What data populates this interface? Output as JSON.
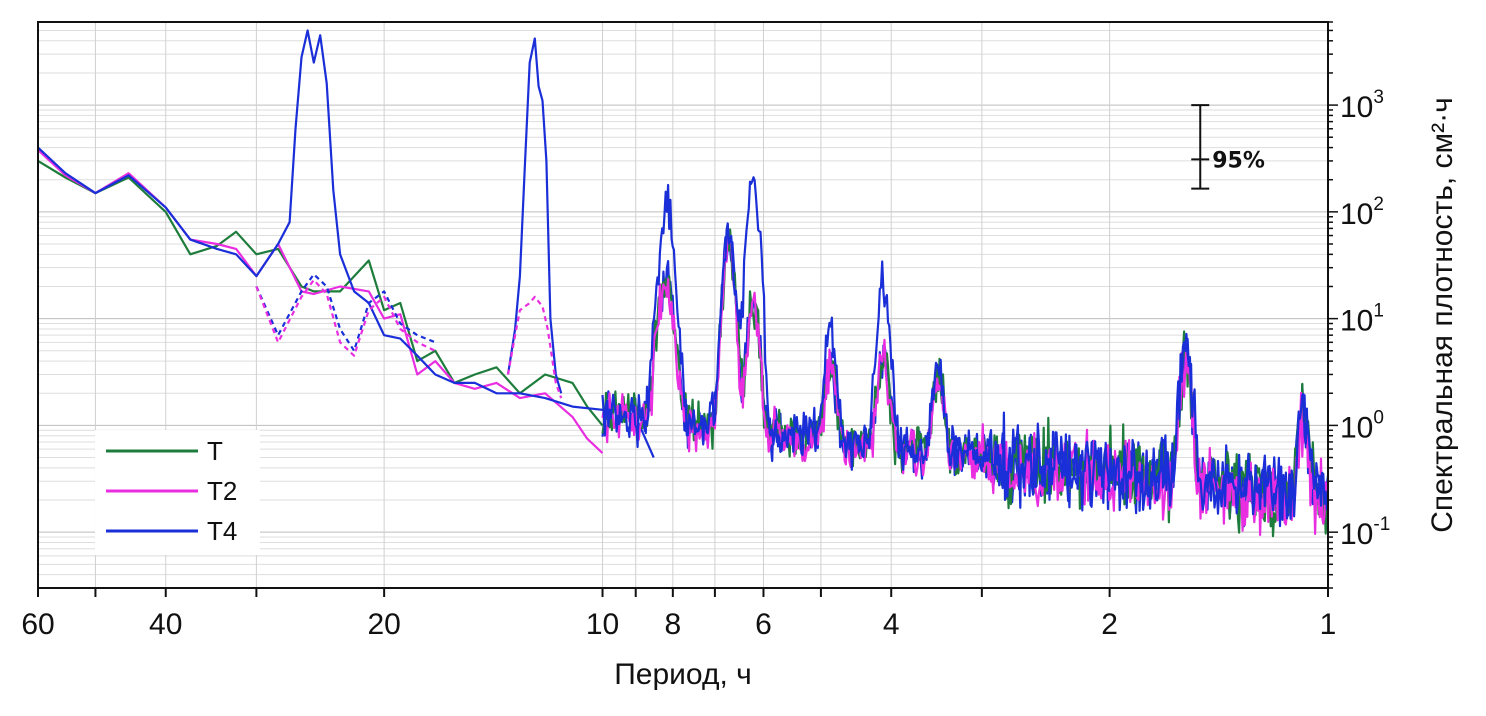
{
  "chart_data": {
    "type": "line",
    "xlabel": "Период, ч",
    "ylabel": "Спектральная плотность, см²·ч",
    "x_scale": "log-frequency (axis labelled by period)",
    "xlim": [
      60,
      1
    ],
    "ylim": [
      0.03,
      6000
    ],
    "y_scale": "log",
    "x_ticks": [
      60,
      40,
      20,
      10,
      8,
      6,
      4,
      2,
      1
    ],
    "x_minor_ticks": [
      50,
      30,
      9,
      7,
      5,
      3
    ],
    "y_tick_labels": [
      {
        "value": 1000,
        "base": "10",
        "exp": "3"
      },
      {
        "value": 100,
        "base": "10",
        "exp": "2"
      },
      {
        "value": 10,
        "base": "10",
        "exp": "1"
      },
      {
        "value": 1,
        "base": "10",
        "exp": "0"
      },
      {
        "value": 0.1,
        "base": "10",
        "exp": "-1"
      }
    ],
    "grid": true,
    "legend_position": "bottom-left",
    "confidence_interval": {
      "label": "95%",
      "upper": 1000,
      "center": 310,
      "lower": 165,
      "period": 1.5
    },
    "series": [
      {
        "name": "T",
        "color": "#1e7d3c",
        "style": "solid",
        "points": [
          [
            60,
            300
          ],
          [
            55,
            210
          ],
          [
            50,
            150
          ],
          [
            45,
            210
          ],
          [
            40,
            100
          ],
          [
            37,
            40
          ],
          [
            34,
            48
          ],
          [
            32,
            65
          ],
          [
            30,
            40
          ],
          [
            28,
            45
          ],
          [
            26,
            20
          ],
          [
            25,
            18
          ],
          [
            23,
            18
          ],
          [
            21,
            35
          ],
          [
            20,
            12
          ],
          [
            19,
            14
          ],
          [
            18,
            4
          ],
          [
            17,
            5
          ],
          [
            16,
            2.5
          ],
          [
            15,
            3
          ],
          [
            14,
            3.5
          ],
          [
            13,
            2
          ],
          [
            12,
            3
          ],
          [
            11,
            2.5
          ],
          [
            10.5,
            1.5
          ],
          [
            10,
            1
          ]
        ]
      },
      {
        "name": "T2",
        "color": "#e82ee0",
        "style": "solid",
        "points": [
          [
            60,
            380
          ],
          [
            55,
            220
          ],
          [
            50,
            150
          ],
          [
            45,
            230
          ],
          [
            40,
            110
          ],
          [
            37,
            55
          ],
          [
            34,
            50
          ],
          [
            32,
            45
          ],
          [
            30,
            25
          ],
          [
            28,
            50
          ],
          [
            26,
            18
          ],
          [
            25,
            17
          ],
          [
            23,
            20
          ],
          [
            21,
            18
          ],
          [
            20,
            10
          ],
          [
            19,
            11
          ],
          [
            18,
            3
          ],
          [
            17,
            4
          ],
          [
            16,
            2.5
          ],
          [
            15,
            2.2
          ],
          [
            14,
            2.5
          ],
          [
            13,
            1.8
          ],
          [
            12,
            2
          ],
          [
            11,
            1.2
          ],
          [
            10.5,
            0.75
          ],
          [
            10,
            0.55
          ]
        ]
      },
      {
        "name": "T4",
        "color": "#1a2fd8",
        "style": "solid",
        "points": [
          [
            60,
            400
          ],
          [
            55,
            230
          ],
          [
            50,
            150
          ],
          [
            45,
            220
          ],
          [
            40,
            110
          ],
          [
            37,
            55
          ],
          [
            34,
            45
          ],
          [
            32,
            40
          ],
          [
            30,
            25
          ],
          [
            28,
            50
          ],
          [
            27,
            80
          ],
          [
            26.5,
            600
          ],
          [
            26,
            2800
          ],
          [
            25.5,
            5000
          ],
          [
            25,
            2500
          ],
          [
            24.5,
            4500
          ],
          [
            24,
            1600
          ],
          [
            23.5,
            160
          ],
          [
            23,
            40
          ],
          [
            22,
            18
          ],
          [
            21,
            14
          ],
          [
            20,
            7
          ],
          [
            19,
            6.5
          ],
          [
            18,
            4.5
          ],
          [
            17,
            3
          ],
          [
            16,
            2.5
          ],
          [
            15,
            2.5
          ],
          [
            14,
            2
          ],
          [
            13,
            2
          ],
          [
            12,
            1.8
          ],
          [
            11,
            1.5
          ],
          [
            10,
            1.4
          ],
          [
            9.5,
            1.5
          ],
          [
            9,
            1.2
          ],
          [
            8.6,
            0.6
          ],
          [
            8.5,
            0.5
          ]
        ]
      },
      {
        "name": "",
        "color": "#1a2fd8",
        "style": "dashed",
        "points": [
          [
            30,
            20
          ],
          [
            28,
            7
          ],
          [
            26,
            18
          ],
          [
            25,
            26
          ],
          [
            24,
            20
          ],
          [
            23,
            8
          ],
          [
            22,
            5
          ],
          [
            21,
            14
          ],
          [
            20,
            18
          ],
          [
            19,
            9
          ],
          [
            18,
            7
          ],
          [
            17,
            6
          ]
        ]
      },
      {
        "name": "",
        "color": "#e82ee0",
        "style": "dashed",
        "points": [
          [
            30,
            20
          ],
          [
            28,
            6
          ],
          [
            26,
            16
          ],
          [
            25,
            23
          ],
          [
            24,
            17
          ],
          [
            23,
            6
          ],
          [
            22,
            4.5
          ],
          [
            21,
            12
          ],
          [
            20,
            16
          ],
          [
            19,
            8
          ],
          [
            18,
            6
          ],
          [
            17,
            5
          ]
        ]
      },
      {
        "name": "",
        "color": "#1a2fd8",
        "style": "solid",
        "points": [
          [
            13.5,
            3
          ],
          [
            13.2,
            8
          ],
          [
            13,
            25
          ],
          [
            12.8,
            250
          ],
          [
            12.6,
            2500
          ],
          [
            12.4,
            4200
          ],
          [
            12.25,
            1500
          ],
          [
            12.1,
            1100
          ],
          [
            11.95,
            300
          ],
          [
            11.8,
            10
          ],
          [
            11.6,
            3
          ],
          [
            11.4,
            2
          ]
        ]
      },
      {
        "name": "",
        "color": "#e82ee0",
        "style": "dashed",
        "points": [
          [
            13.5,
            3
          ],
          [
            13.2,
            7
          ],
          [
            13,
            12
          ],
          [
            12.6,
            14
          ],
          [
            12.4,
            16
          ],
          [
            12.1,
            13
          ],
          [
            11.9,
            8
          ],
          [
            11.6,
            2.5
          ],
          [
            11.4,
            1.8
          ]
        ]
      }
    ],
    "noise_segment": {
      "period_from": 10,
      "period_to": 1,
      "description": "three overlapping noisy spectra"
    },
    "peaks": [
      {
        "period": 8.3,
        "T4": 35,
        "T2": 14
      },
      {
        "period": 8.0,
        "T4": 22,
        "T2": 8
      },
      {
        "period": 6.7,
        "T4": 60,
        "T2": 55
      },
      {
        "period": 6.2,
        "T4": 210,
        "T2": 14
      },
      {
        "period": 4.85,
        "T4": 8,
        "T2": 4
      },
      {
        "period": 4.1,
        "T4": 20,
        "T2": 5
      },
      {
        "period": 3.45,
        "T4": 3.5,
        "T2": 3
      },
      {
        "period": 2.7,
        "T4": 0.6,
        "T2": 0.4
      },
      {
        "period": 1.57,
        "T4": 5,
        "T2": 4.5
      },
      {
        "period": 1.08,
        "T4": 1.4,
        "T2": 1.2
      }
    ]
  }
}
